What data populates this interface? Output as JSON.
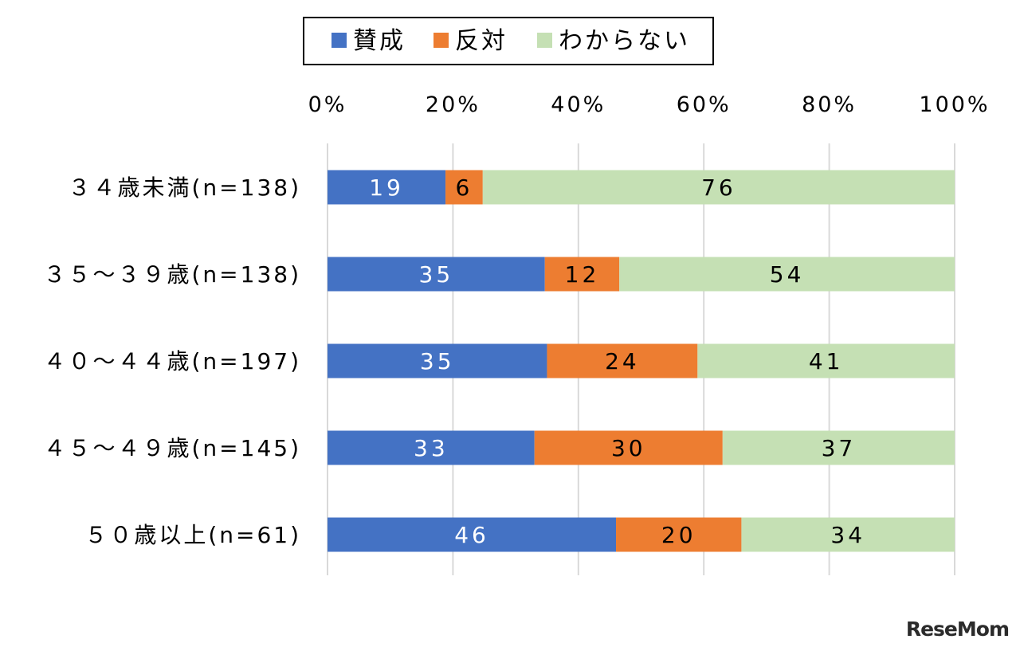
{
  "chart_data": {
    "type": "bar",
    "orientation": "horizontal",
    "stacked": true,
    "percent": true,
    "categories": [
      "３４歳未満(n=138)",
      "３５～３９歳(n=138)",
      "４０～４４歳(n=197)",
      "４５～４９歳(n=145)",
      "５０歳以上(n=61)"
    ],
    "series": [
      {
        "name": "賛成",
        "color": "#4472c4",
        "values": [
          19,
          35,
          35,
          33,
          46
        ]
      },
      {
        "name": "反対",
        "color": "#ed7d31",
        "values": [
          6,
          12,
          24,
          30,
          20
        ]
      },
      {
        "name": "わからない",
        "color": "#c5e0b4",
        "values": [
          76,
          54,
          41,
          37,
          34
        ]
      }
    ],
    "xticks": [
      "0%",
      "20%",
      "40%",
      "60%",
      "80%",
      "100%"
    ],
    "xlim": [
      0,
      100
    ],
    "legend_position": "top",
    "grid": true,
    "title": "",
    "xlabel": "",
    "ylabel": ""
  },
  "watermark": "ReseMom"
}
